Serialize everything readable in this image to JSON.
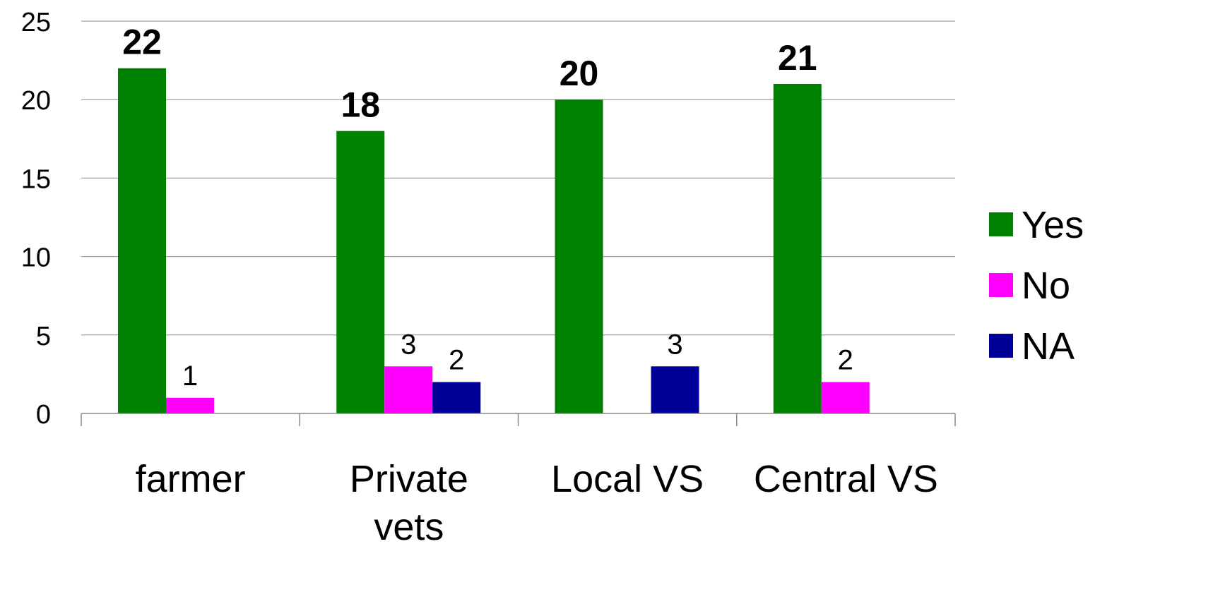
{
  "chart_data": {
    "type": "bar",
    "categories": [
      [
        "farmer"
      ],
      [
        "Private",
        "vets"
      ],
      [
        "Local VS"
      ],
      [
        "Central VS"
      ]
    ],
    "series": [
      {
        "name": "Yes",
        "color": "#008000",
        "values": [
          22,
          18,
          20,
          21
        ],
        "labels": [
          "22",
          "18",
          "20",
          "21"
        ]
      },
      {
        "name": "No",
        "color": "#FF00FF",
        "values": [
          1,
          3,
          0,
          2
        ],
        "labels": [
          "1",
          "3",
          "",
          "2"
        ]
      },
      {
        "name": "NA",
        "color": "#000099",
        "values": [
          0,
          2,
          3,
          0
        ],
        "labels": [
          "",
          "2",
          "3",
          ""
        ]
      }
    ],
    "ylim": [
      0,
      25
    ],
    "yticks": [
      "0",
      "5",
      "10",
      "15",
      "20",
      "25"
    ],
    "grid": true,
    "legend": "right"
  }
}
